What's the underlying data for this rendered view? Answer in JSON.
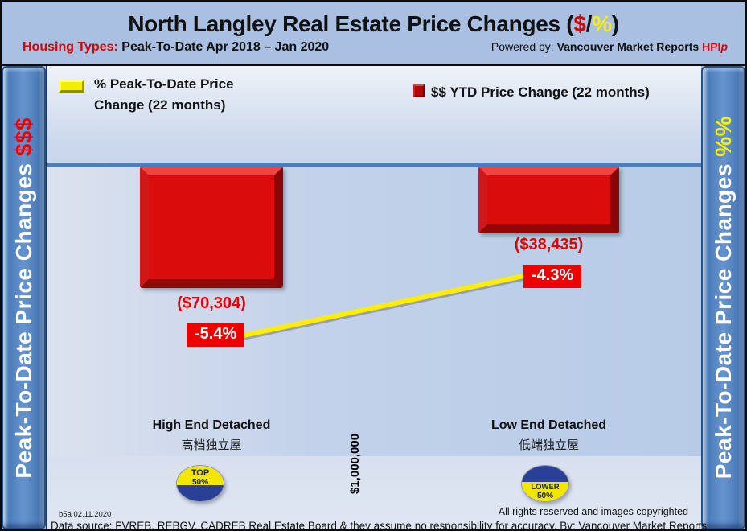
{
  "header": {
    "title_part1": "North Langley Real Estate Price Changes (",
    "title_dollar": "$",
    "title_slash": "/",
    "title_percent": "%",
    "title_close": ")",
    "housing_label": "Housing Types:",
    "housing_value": " Peak-To-Date Apr 2018 – Jan 2020",
    "powered_label": "Powered by: ",
    "powered_brand": "Vancouver Market Reports ",
    "powered_hpi": "HPI",
    "powered_p": "p"
  },
  "sidebar_left": {
    "text": "Peak-To-Date Price Changes ",
    "suffix": "$$$"
  },
  "sidebar_right": {
    "text": "Peak-To-Date  Price  Changes  ",
    "suffix": "%%"
  },
  "chart_data": {
    "type": "bar",
    "title": "North Langley Real Estate Price Changes ($/%)",
    "subtitle": "Housing Types: Peak-To-Date Apr 2018 – Jan 2020",
    "categories": [
      "High End Detached",
      "Low End Detached"
    ],
    "categories_cn": [
      "高档独立屋",
      "低端独立屋"
    ],
    "series": [
      {
        "name": "$$ YTD Price Change (22 months)",
        "type": "bar",
        "color": "#da0c0c",
        "values": [
          -70304,
          -38435
        ],
        "labels": [
          "($70,304)",
          "($38,435)"
        ]
      },
      {
        "name": "% Peak-To-Date Price Change (22 months)",
        "type": "line",
        "color": "#ffee00",
        "values": [
          -5.4,
          -4.3
        ],
        "labels": [
          "-5.4%",
          "-4.3%"
        ]
      }
    ],
    "baseline_label": "$1,000,000",
    "axis_color": "#4a7ebc",
    "legend_position": "top",
    "bars_hang_from_zero_line": true
  },
  "badges": [
    {
      "line1": "TOP",
      "line2": "50%"
    },
    {
      "line1": "LOWER",
      "line2": "50%"
    }
  ],
  "footer": {
    "version": "b5a 02.11.2020",
    "rights": "All rights reserved and  images copyrighted",
    "source": "Data source: FVREB, REBGV, CADREB Real Estate Board & they assume no responsibility for accuracy. By: Vancouver Market Reports"
  },
  "colors": {
    "accent_red": "#d40000",
    "accent_yellow": "#f6f000",
    "bar_red": "#da0c0c",
    "line_yellow": "#ffee00",
    "axis_blue": "#4a7ebc",
    "sidebar_blue": "#5e8dca"
  }
}
